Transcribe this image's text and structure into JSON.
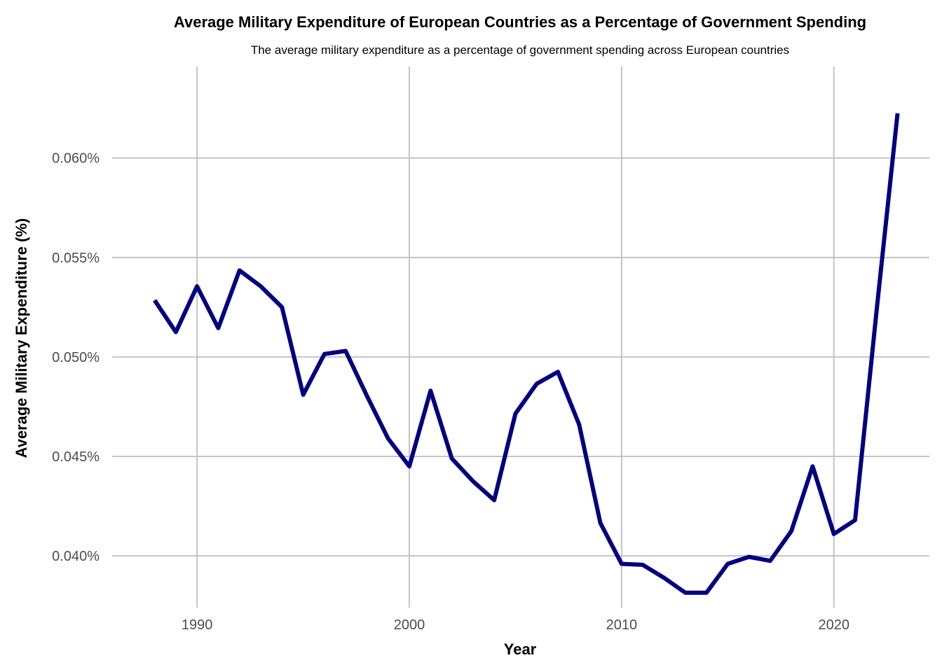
{
  "chart_data": {
    "type": "line",
    "title": "Average Military Expenditure of European Countries as a Percentage of Government Spending",
    "subtitle": "The average military expenditure as a percentage of government spending across European countries",
    "xlabel": "Year",
    "ylabel": "Average Military Expenditure (%)",
    "xlim": [
      1986,
      2024.5
    ],
    "ylim": [
      0.0374,
      0.0646
    ],
    "x_ticks": [
      1990,
      2000,
      2010,
      2020
    ],
    "x_tick_labels": [
      "1990",
      "2000",
      "2010",
      "2020"
    ],
    "y_ticks": [
      0.04,
      0.045,
      0.05,
      0.055,
      0.06
    ],
    "y_tick_labels": [
      "0.040%",
      "0.045%",
      "0.050%",
      "0.055%",
      "0.060%"
    ],
    "grid": true,
    "legend": "none",
    "line_color": "#000080",
    "series": [
      {
        "x": [
          1988,
          1989,
          1990,
          1991,
          1992,
          1993,
          1994,
          1995,
          1996,
          1997,
          1998,
          1999,
          2000,
          2001,
          2002,
          2003,
          2004,
          2005,
          2006,
          2007,
          2008,
          2009,
          2010,
          2011,
          2012,
          2013,
          2014,
          2015,
          2016,
          2017,
          2018,
          2019,
          2020,
          2021,
          2022,
          2023
        ],
        "values": [
          0.05285,
          0.05125,
          0.05355,
          0.05145,
          0.05435,
          0.05355,
          0.0525,
          0.0481,
          0.05015,
          0.0503,
          0.04805,
          0.0459,
          0.0445,
          0.0483,
          0.0449,
          0.04375,
          0.0428,
          0.04715,
          0.04865,
          0.04925,
          0.0466,
          0.04165,
          0.0396,
          0.03955,
          0.0389,
          0.03815,
          0.03815,
          0.0396,
          0.03995,
          0.03975,
          0.04125,
          0.0445,
          0.0411,
          0.0418,
          0.0522,
          0.06225
        ]
      }
    ]
  }
}
